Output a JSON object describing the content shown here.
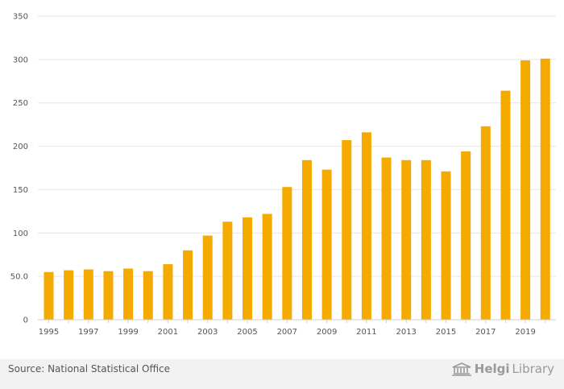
{
  "chart_data": {
    "type": "bar",
    "categories": [
      "1995",
      "1996",
      "1997",
      "1998",
      "1999",
      "2000",
      "2001",
      "2002",
      "2003",
      "2004",
      "2005",
      "2006",
      "2007",
      "2008",
      "2009",
      "2010",
      "2011",
      "2012",
      "2013",
      "2014",
      "2015",
      "2016",
      "2017",
      "2018",
      "2019",
      "2020"
    ],
    "values": [
      55,
      57,
      58,
      56,
      59,
      56,
      64,
      80,
      97,
      113,
      118,
      122,
      153,
      184,
      173,
      207,
      216,
      187,
      184,
      184,
      171,
      194,
      223,
      264,
      299,
      301
    ],
    "x_tick_labels": [
      "1995",
      "1997",
      "1999",
      "2001",
      "2003",
      "2005",
      "2007",
      "2009",
      "2011",
      "2013",
      "2015",
      "2017",
      "2019"
    ],
    "y_ticks": [
      0,
      50,
      100,
      150,
      200,
      250,
      300,
      350
    ],
    "y_tick_labels": [
      "0",
      "50.0",
      "100",
      "150",
      "200",
      "250",
      "300",
      "350"
    ],
    "ylim": [
      0,
      350
    ],
    "grid": true,
    "bar_color": "#f5aa00",
    "title": "",
    "xlabel": "",
    "ylabel": ""
  },
  "footer": {
    "source": "Source: National Statistical Office",
    "brand_bold": "Helgi",
    "brand_light": "Library"
  },
  "brand_icon": "library-building-icon"
}
